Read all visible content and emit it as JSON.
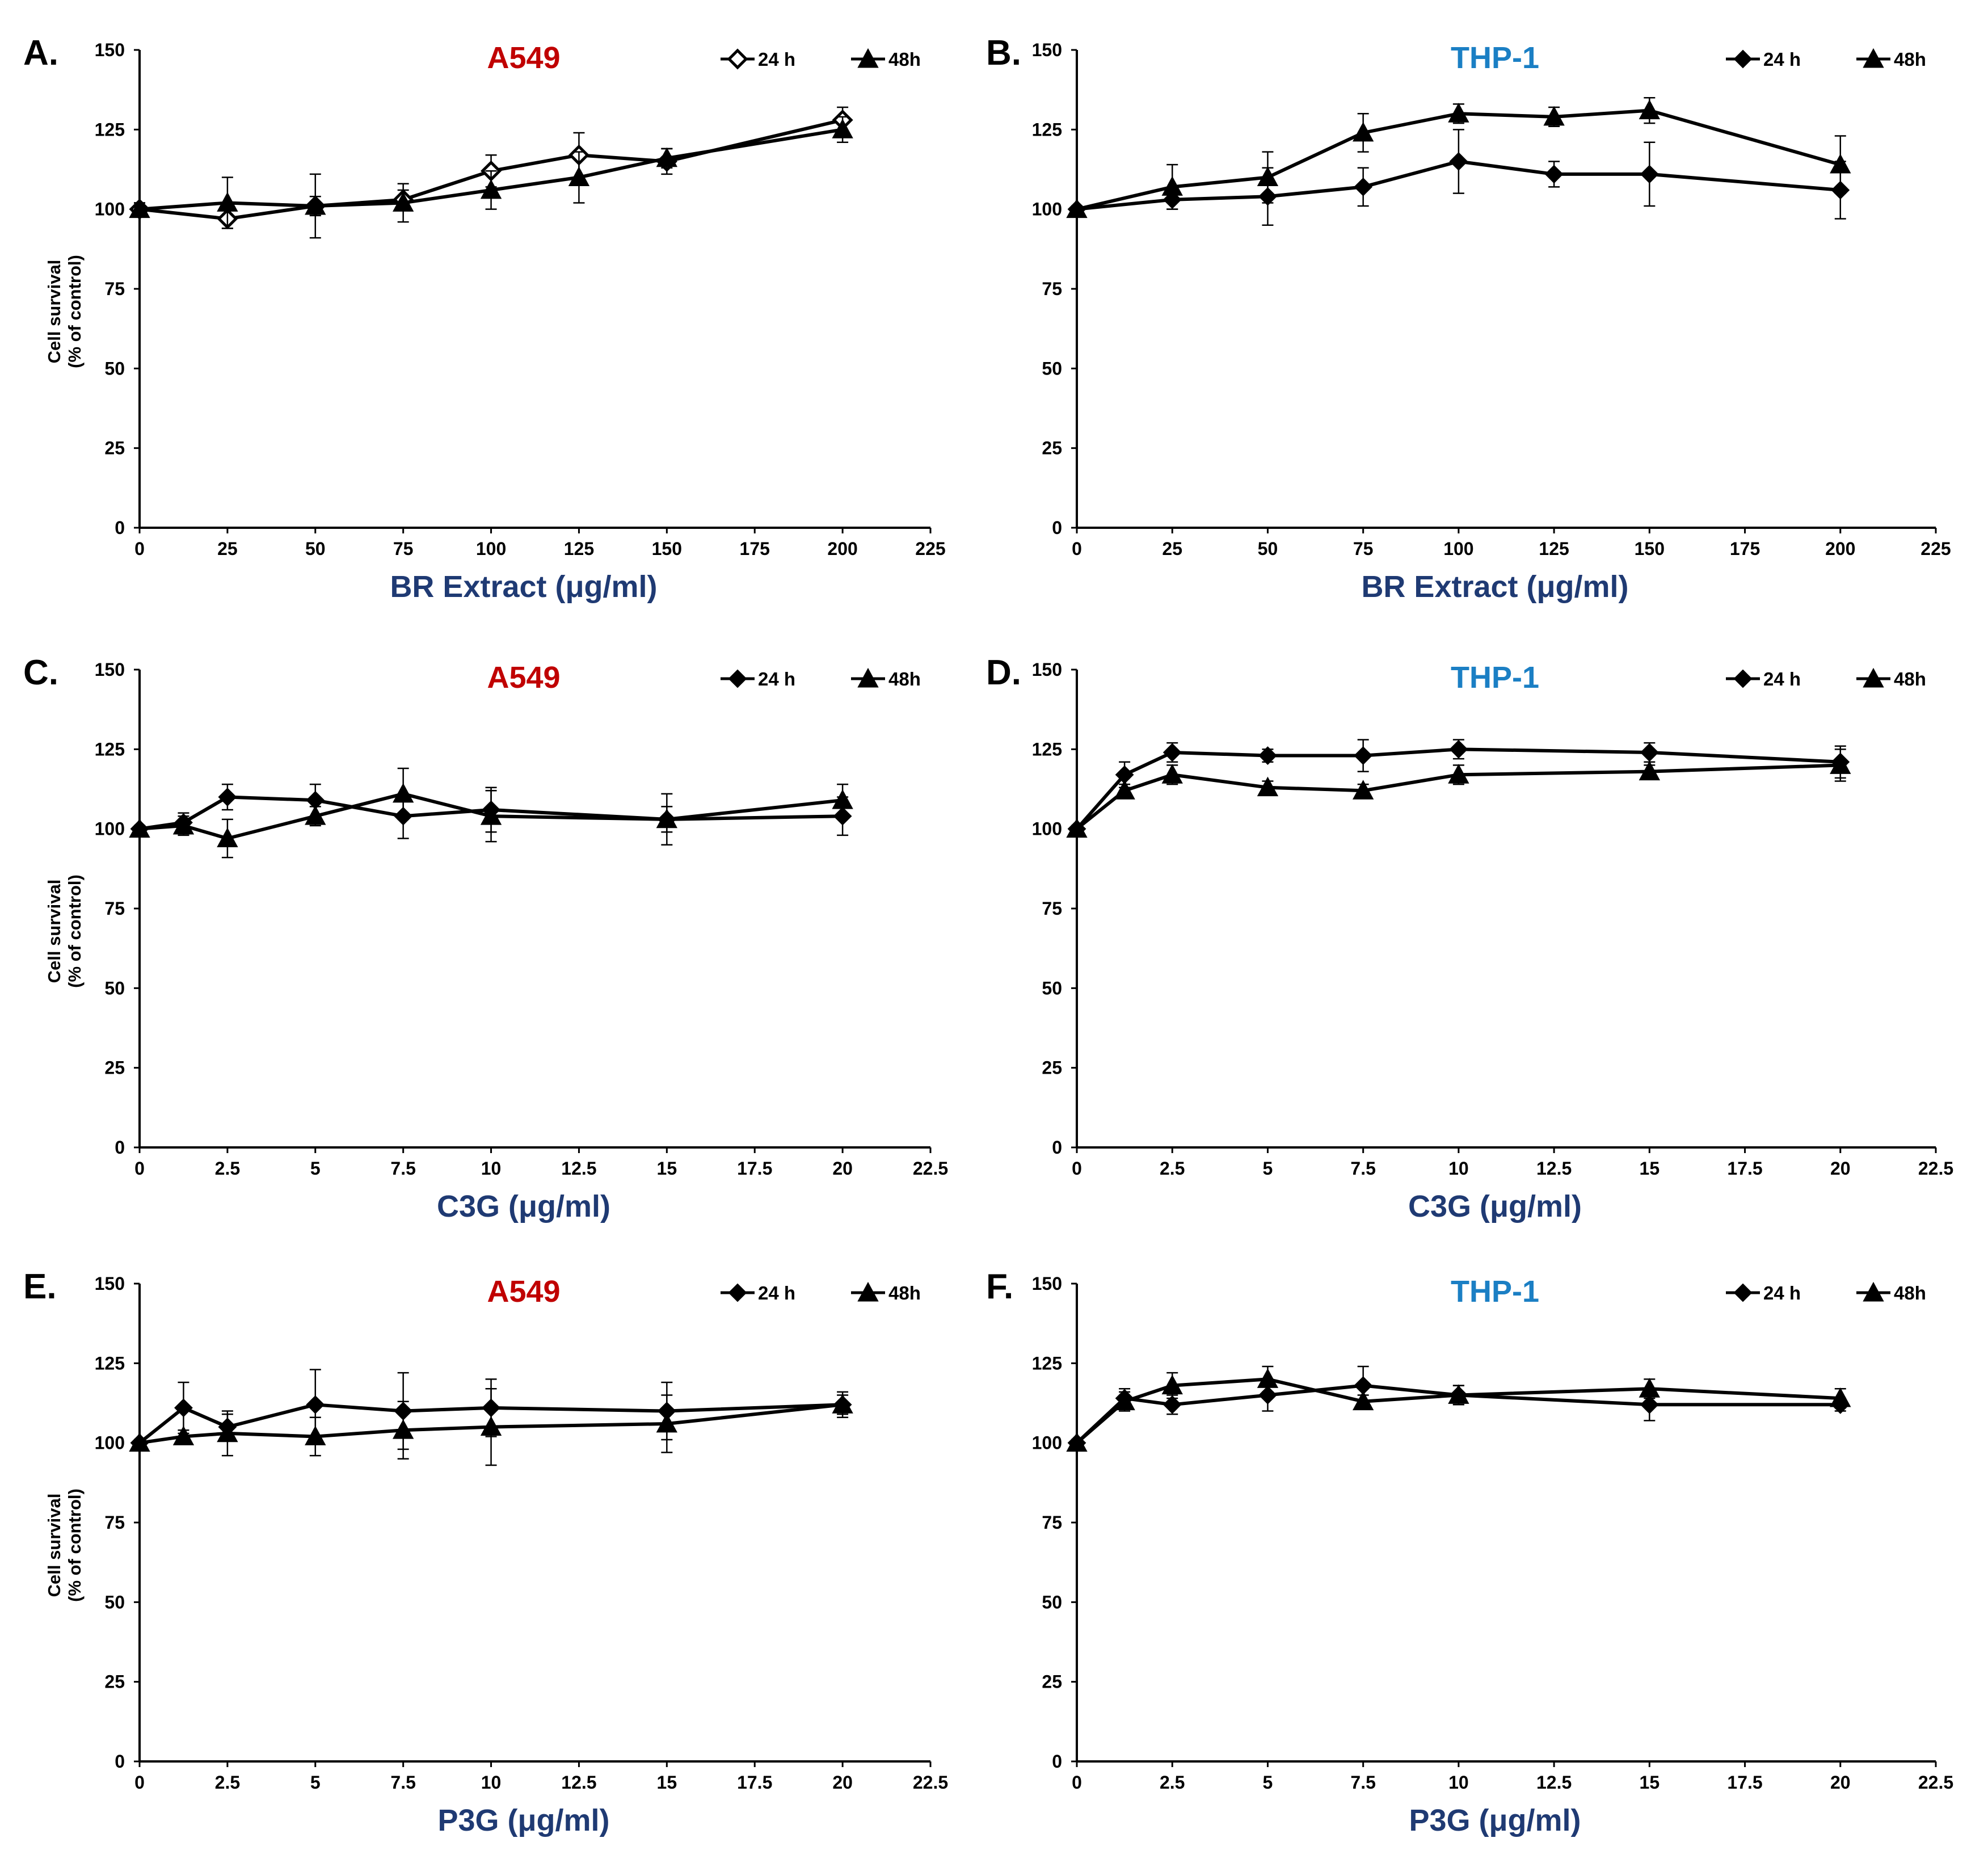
{
  "figure": {
    "panel_count": 6
  },
  "chart_data": [
    {
      "panel": "A.",
      "type": "line",
      "title": "A549",
      "title_color": "#c00000",
      "xlabel": "BR Extract (μg/ml)",
      "ylabel": [
        "Cell survival",
        "(% of control)"
      ],
      "xlim": [
        0,
        225
      ],
      "ylim": [
        0,
        150
      ],
      "xticks": [
        0,
        25,
        50,
        75,
        100,
        125,
        150,
        175,
        200,
        225
      ],
      "yticks": [
        0,
        25,
        50,
        75,
        100,
        125,
        150
      ],
      "x": [
        0,
        25,
        50,
        75,
        100,
        125,
        150,
        200
      ],
      "series": [
        {
          "name": "24 h",
          "marker": "diamond-open",
          "values": [
            100,
            97,
            101,
            103,
            112,
            117,
            115,
            128
          ],
          "errors": [
            2,
            3,
            3,
            3,
            5,
            7,
            4,
            4
          ]
        },
        {
          "name": "48h",
          "marker": "triangle",
          "values": [
            100,
            102,
            101,
            102,
            106,
            110,
            116,
            125
          ],
          "errors": [
            2,
            8,
            10,
            6,
            6,
            8,
            3,
            4
          ]
        }
      ]
    },
    {
      "panel": "B.",
      "type": "line",
      "title": "THP-1",
      "title_color": "#1b7fc4",
      "xlabel": "BR Extract (μg/ml)",
      "ylabel": [],
      "xlim": [
        0,
        225
      ],
      "ylim": [
        0,
        150
      ],
      "xticks": [
        0,
        25,
        50,
        75,
        100,
        125,
        150,
        175,
        200,
        225
      ],
      "yticks": [
        0,
        25,
        50,
        75,
        100,
        125,
        150
      ],
      "x": [
        0,
        25,
        50,
        75,
        100,
        125,
        150,
        200
      ],
      "series": [
        {
          "name": "24 h",
          "marker": "diamond",
          "values": [
            100,
            103,
            104,
            107,
            115,
            111,
            111,
            106
          ],
          "errors": [
            1,
            3,
            9,
            6,
            10,
            4,
            10,
            9
          ]
        },
        {
          "name": "48h",
          "marker": "triangle",
          "values": [
            100,
            107,
            110,
            124,
            130,
            129,
            131,
            114
          ],
          "errors": [
            1,
            7,
            8,
            6,
            3,
            3,
            4,
            9
          ]
        }
      ]
    },
    {
      "panel": "C.",
      "type": "line",
      "title": "A549",
      "title_color": "#c00000",
      "xlabel": "C3G (μg/ml)",
      "ylabel": [
        "Cell survival",
        "(% of control)"
      ],
      "xlim": [
        0,
        22.5
      ],
      "ylim": [
        0,
        150
      ],
      "xticks": [
        0,
        2.5,
        5,
        7.5,
        10,
        12.5,
        15,
        17.5,
        20,
        22.5
      ],
      "yticks": [
        0,
        25,
        50,
        75,
        100,
        125,
        150
      ],
      "x": [
        0,
        1.25,
        2.5,
        5,
        7.5,
        10,
        15,
        20
      ],
      "series": [
        {
          "name": "24 h",
          "marker": "diamond",
          "values": [
            100,
            102,
            110,
            109,
            104,
            106,
            103,
            104
          ],
          "errors": [
            1,
            3,
            4,
            5,
            7,
            7,
            8,
            6
          ]
        },
        {
          "name": "48h",
          "marker": "triangle",
          "values": [
            100,
            101,
            97,
            104,
            111,
            104,
            103,
            109
          ],
          "errors": [
            1,
            3,
            6,
            3,
            8,
            8,
            4,
            5
          ]
        }
      ]
    },
    {
      "panel": "D.",
      "type": "line",
      "title": "THP-1",
      "title_color": "#1b7fc4",
      "xlabel": "C3G (μg/ml)",
      "ylabel": [],
      "xlim": [
        0,
        22.5
      ],
      "ylim": [
        0,
        150
      ],
      "xticks": [
        0,
        2.5,
        5,
        7.5,
        10,
        12.5,
        15,
        17.5,
        20,
        22.5
      ],
      "yticks": [
        0,
        25,
        50,
        75,
        100,
        125,
        150
      ],
      "x": [
        0,
        1.25,
        2.5,
        5,
        7.5,
        10,
        15,
        20
      ],
      "series": [
        {
          "name": "24 h",
          "marker": "diamond",
          "values": [
            100,
            117,
            124,
            123,
            123,
            125,
            124,
            121
          ],
          "errors": [
            1,
            4,
            3,
            2,
            5,
            3,
            3,
            5
          ]
        },
        {
          "name": "48h",
          "marker": "triangle",
          "values": [
            100,
            112,
            117,
            113,
            112,
            117,
            118,
            120
          ],
          "errors": [
            1,
            2,
            3,
            2,
            2,
            3,
            2,
            5
          ]
        }
      ]
    },
    {
      "panel": "E.",
      "type": "line",
      "title": "A549",
      "title_color": "#c00000",
      "xlabel": "P3G (μg/ml)",
      "ylabel": [
        "Cell survival",
        "(% of control)"
      ],
      "xlim": [
        0,
        22.5
      ],
      "ylim": [
        0,
        150
      ],
      "xticks": [
        0,
        2.5,
        5,
        7.5,
        10,
        12.5,
        15,
        17.5,
        20,
        22.5
      ],
      "yticks": [
        0,
        25,
        50,
        75,
        100,
        125,
        150
      ],
      "x": [
        0,
        1.25,
        2.5,
        5,
        7.5,
        10,
        15,
        20
      ],
      "series": [
        {
          "name": "24 h",
          "marker": "diamond",
          "values": [
            100,
            111,
            105,
            112,
            110,
            111,
            110,
            112
          ],
          "errors": [
            1,
            8,
            4,
            11,
            12,
            9,
            9,
            3
          ]
        },
        {
          "name": "48h",
          "marker": "triangle",
          "values": [
            100,
            102,
            103,
            102,
            104,
            105,
            106,
            112
          ],
          "errors": [
            1,
            2,
            7,
            6,
            9,
            12,
            9,
            4
          ]
        }
      ]
    },
    {
      "panel": "F.",
      "type": "line",
      "title": "THP-1",
      "title_color": "#1b7fc4",
      "xlabel": "P3G (μg/ml)",
      "ylabel": [],
      "xlim": [
        0,
        22.5
      ],
      "ylim": [
        0,
        150
      ],
      "xticks": [
        0,
        2.5,
        5,
        7.5,
        10,
        12.5,
        15,
        17.5,
        20,
        22.5
      ],
      "yticks": [
        0,
        25,
        50,
        75,
        100,
        125,
        150
      ],
      "x": [
        0,
        1.25,
        2.5,
        5,
        7.5,
        10,
        15,
        20
      ],
      "series": [
        {
          "name": "24 h",
          "marker": "diamond",
          "values": [
            100,
            114,
            112,
            115,
            118,
            115,
            112,
            112
          ],
          "errors": [
            1,
            3,
            3,
            5,
            6,
            3,
            5,
            2
          ]
        },
        {
          "name": "48h",
          "marker": "triangle",
          "values": [
            100,
            113,
            118,
            120,
            113,
            115,
            117,
            114
          ],
          "errors": [
            1,
            3,
            4,
            4,
            2,
            3,
            3,
            3
          ]
        }
      ]
    }
  ],
  "colors": {
    "axis": "#000000",
    "line": "#000000",
    "xlabel": "#1f3a73"
  }
}
